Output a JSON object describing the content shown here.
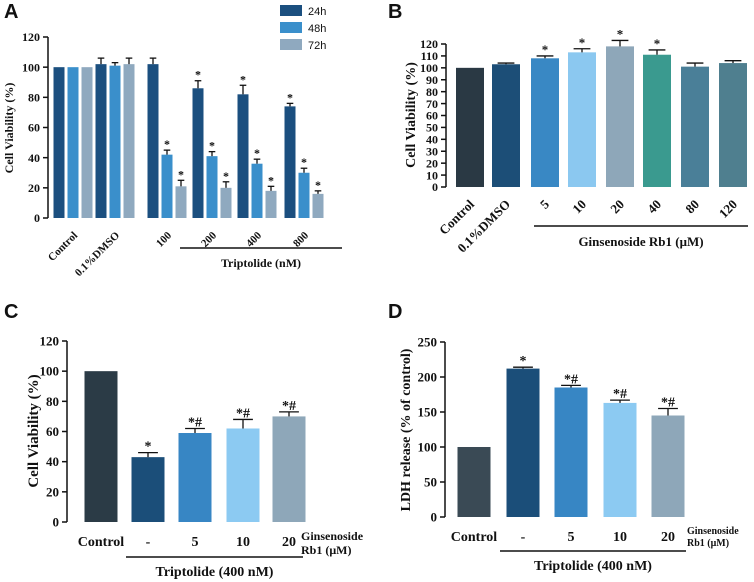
{
  "chart_data": [
    {
      "id": "A",
      "type": "bar",
      "panel_label": "A",
      "ylabel": "Cell Viability (%)",
      "ylim": [
        0,
        120
      ],
      "yticks": [
        0,
        20,
        40,
        60,
        80,
        100,
        120
      ],
      "categories": [
        "Control",
        "0.1%DMSO",
        "100",
        "200",
        "400",
        "800"
      ],
      "group_label": "Triptolide (nM)",
      "legend_position": "top-right",
      "series": [
        {
          "name": "24h",
          "color": "#1b4f7f",
          "values": [
            100,
            102,
            102,
            86,
            82,
            74
          ],
          "errors": [
            0,
            4,
            4,
            5,
            6,
            2
          ],
          "marks": [
            "",
            "",
            "",
            "*",
            "*",
            "*"
          ]
        },
        {
          "name": "48h",
          "color": "#3a8fcb",
          "values": [
            100,
            101,
            42,
            41,
            36,
            30
          ],
          "errors": [
            0,
            2,
            3,
            3,
            3,
            3
          ],
          "marks": [
            "",
            "",
            "*",
            "*",
            "*",
            "*"
          ]
        },
        {
          "name": "72h",
          "color": "#8fa9bf",
          "values": [
            100,
            102,
            21,
            20,
            18,
            16
          ],
          "errors": [
            0,
            4,
            4,
            4,
            3,
            2
          ],
          "marks": [
            "",
            "",
            "*",
            "*",
            "*",
            "*"
          ]
        }
      ]
    },
    {
      "id": "B",
      "type": "bar",
      "panel_label": "B",
      "ylabel": "Cell Viability (%)",
      "ylim": [
        0,
        120
      ],
      "yticks": [
        0,
        10,
        20,
        30,
        40,
        50,
        60,
        70,
        80,
        90,
        100,
        110,
        120
      ],
      "categories": [
        "Control",
        "0.1%DMSO",
        "5",
        "10",
        "20",
        "40",
        "80",
        "120"
      ],
      "group_label": "Ginsenoside Rb1 (μM)",
      "values": [
        100,
        103,
        108,
        113,
        118,
        111,
        101,
        104
      ],
      "errors": [
        0,
        1,
        2,
        3,
        5,
        4,
        3,
        2
      ],
      "colors": [
        "#2a3944",
        "#1c4e77",
        "#3988c4",
        "#8bc8f0",
        "#8ea7b9",
        "#3a9a8f",
        "#4a7f98",
        "#4f7f8f"
      ],
      "marks": [
        "",
        "",
        "*",
        "*",
        "*",
        "*",
        "",
        ""
      ]
    },
    {
      "id": "C",
      "type": "bar",
      "panel_label": "C",
      "ylabel": "Cell Viability (%)",
      "ylim": [
        0,
        120
      ],
      "yticks": [
        0,
        20,
        40,
        60,
        80,
        100,
        120
      ],
      "categories": [
        "Control",
        "-",
        "5",
        "10",
        "20"
      ],
      "legend_note": [
        "Ginsenoside",
        "Rb1 (μM)"
      ],
      "group_label": "Triptolide (400 nM)",
      "values": [
        100,
        43,
        59,
        62,
        70
      ],
      "errors": [
        0,
        3,
        3,
        6,
        3
      ],
      "colors": [
        "#2b3b46",
        "#1b4e79",
        "#3786c4",
        "#8ccaf2",
        "#8ea7b9"
      ],
      "marks": [
        "",
        "*",
        "*#",
        "*#",
        "*#"
      ]
    },
    {
      "id": "D",
      "type": "bar",
      "panel_label": "D",
      "ylabel": "LDH release (% of control)",
      "ylim": [
        0,
        250
      ],
      "yticks": [
        0,
        50,
        100,
        150,
        200,
        250
      ],
      "categories": [
        "Control",
        "-",
        "5",
        "10",
        "20"
      ],
      "legend_note": [
        "Ginsenoside",
        "Rb1 (μM)"
      ],
      "group_label": "Triptolide (400 nM)",
      "values": [
        100,
        212,
        185,
        163,
        145
      ],
      "errors": [
        0,
        2,
        3,
        4,
        10
      ],
      "colors": [
        "#3a4a55",
        "#1b4e79",
        "#3786c4",
        "#8ccaf2",
        "#8ea7b9"
      ],
      "marks": [
        "",
        "*",
        "*#",
        "*#",
        "*#"
      ]
    }
  ]
}
